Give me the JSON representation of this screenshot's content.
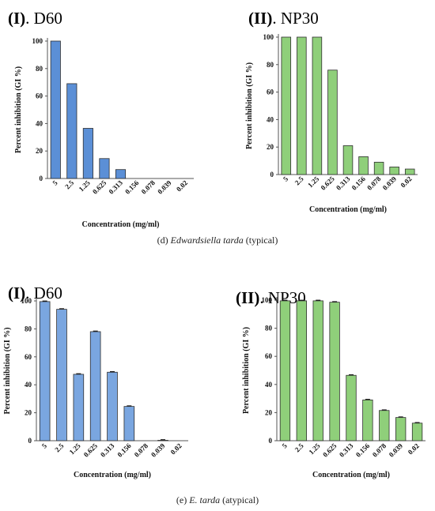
{
  "chart_data": [
    {
      "type": "bar",
      "panel": "I",
      "title": "D60",
      "categories": [
        "5",
        "2.5",
        "1.25",
        "0.625",
        "0.313",
        "0.156",
        "0.078",
        "0.039",
        "0.02"
      ],
      "values": [
        100,
        69,
        36.5,
        14.5,
        6.5,
        0,
        0,
        0,
        0
      ],
      "xlabel": "Concentration (mg/ml)",
      "ylabel": "Percent inhibition (GI %)",
      "ylim": [
        0,
        100
      ],
      "yticks": [
        0,
        20,
        40,
        60,
        80,
        100
      ],
      "color": "#5b8fd6",
      "error_bars": false
    },
    {
      "type": "bar",
      "panel": "II",
      "title": "NP30",
      "categories": [
        "5",
        "2.5",
        "1.25",
        "0.625",
        "0.313",
        "0.156",
        "0.078",
        "0.039",
        "0.02"
      ],
      "values": [
        100,
        100,
        100,
        76,
        21,
        13,
        9,
        5.5,
        4
      ],
      "xlabel": "Concentration (mg/ml)",
      "ylabel": "Percent inhibition (GI %)",
      "ylim": [
        0,
        100
      ],
      "yticks": [
        0,
        20,
        40,
        60,
        80,
        100
      ],
      "color": "#8fcf7a",
      "error_bars": false
    },
    {
      "type": "bar",
      "panel": "I",
      "title": "D60",
      "categories": [
        "5",
        "2.5",
        "1.25",
        "0.625",
        "0.313",
        "0.156",
        "0.078",
        "0.039",
        "0.02"
      ],
      "values": [
        99.5,
        94,
        47.5,
        78,
        49,
        24.5,
        0,
        0.3,
        0
      ],
      "xlabel": "Concentration (mg/ml)",
      "ylabel": "Percent inhibition (GI %)",
      "ylim": [
        0,
        100
      ],
      "yticks": [
        0,
        20,
        40,
        60,
        80,
        100
      ],
      "color": "#7aa6e0",
      "error_bars": true
    },
    {
      "type": "bar",
      "panel": "II",
      "title": "NP30",
      "categories": [
        "5",
        "2.5",
        "1.25",
        "0.625",
        "0.313",
        "0.156",
        "0.078",
        "0.039",
        "0.02"
      ],
      "values": [
        99.5,
        99.5,
        99.5,
        98.5,
        46.5,
        29,
        21.5,
        16.5,
        12.5
      ],
      "xlabel": "Concentration (mg/ml)",
      "ylabel": "Percent inhibition (GI %)",
      "ylim": [
        0,
        100
      ],
      "yticks": [
        0,
        20,
        40,
        60,
        80,
        100
      ],
      "color": "#8fcf7a",
      "error_bars": true
    }
  ],
  "captions": {
    "d": {
      "prefix": "(d) ",
      "species": "Edwardsiella tarda",
      "suffix": " (typical)"
    },
    "e": {
      "prefix": "(e) ",
      "species": "E. tarda",
      "suffix": " (atypical)"
    }
  }
}
